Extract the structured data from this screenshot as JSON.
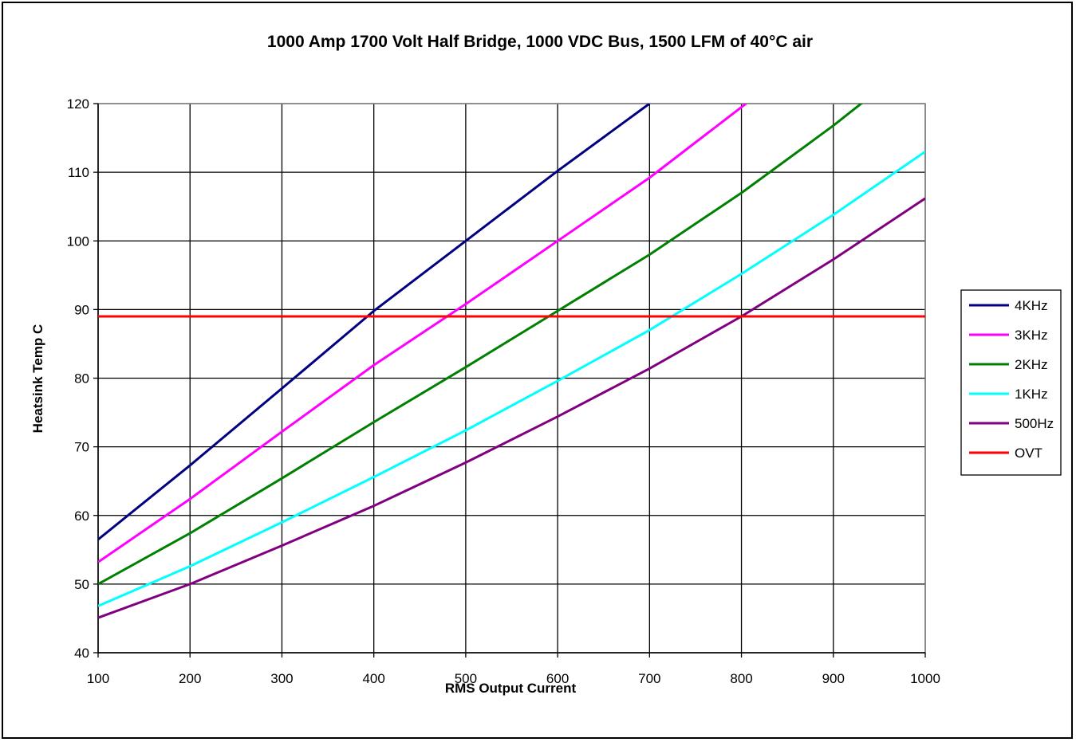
{
  "chart_data": {
    "type": "line",
    "title": "1000 Amp 1700 Volt Half Bridge, 1000 VDC Bus, 1500 LFM of 40°C air",
    "xlabel": "RMS Output Current",
    "ylabel": "Heatsink Temp C",
    "xlim": [
      100,
      1000
    ],
    "ylim": [
      40,
      120
    ],
    "xticks": [
      "100",
      "200",
      "300",
      "400",
      "500",
      "600",
      "700",
      "800",
      "900",
      "1000"
    ],
    "yticks": [
      "40",
      "50",
      "60",
      "70",
      "80",
      "90",
      "100",
      "110",
      "120"
    ],
    "grid": true,
    "legend_position": "right",
    "series": [
      {
        "name": "4KHz",
        "color": "#000080",
        "x": [
          100,
          200,
          300,
          400,
          500,
          600,
          700
        ],
        "y": [
          56.5,
          67.3,
          78.5,
          89.8,
          100.0,
          110.2,
          120.0
        ]
      },
      {
        "name": "3KHz",
        "color": "#FF00FF",
        "x": [
          100,
          200,
          300,
          400,
          500,
          600,
          700,
          805
        ],
        "y": [
          53.2,
          62.4,
          72.2,
          81.9,
          90.8,
          100.0,
          109.2,
          120.0
        ]
      },
      {
        "name": "2KHz",
        "color": "#008000",
        "x": [
          100,
          200,
          300,
          400,
          500,
          600,
          700,
          800,
          900,
          935
        ],
        "y": [
          50.0,
          57.4,
          65.4,
          73.6,
          81.6,
          89.8,
          98.0,
          107.0,
          116.8,
          120.5
        ]
      },
      {
        "name": "1KHz",
        "color": "#00FFFF",
        "x": [
          100,
          200,
          300,
          400,
          500,
          600,
          700,
          800,
          900,
          1000
        ],
        "y": [
          46.8,
          52.6,
          59.0,
          65.6,
          72.4,
          79.6,
          87.0,
          95.2,
          103.8,
          113.0
        ]
      },
      {
        "name": "500Hz",
        "color": "#800080",
        "x": [
          100,
          200,
          300,
          400,
          500,
          600,
          700,
          800,
          900,
          1000
        ],
        "y": [
          45.1,
          50.0,
          55.6,
          61.4,
          67.7,
          74.4,
          81.4,
          89.0,
          97.3,
          106.2
        ]
      },
      {
        "name": "OVT",
        "color": "#FF0000",
        "x": [
          100,
          1000
        ],
        "y": [
          89.0,
          89.0
        ]
      }
    ]
  }
}
